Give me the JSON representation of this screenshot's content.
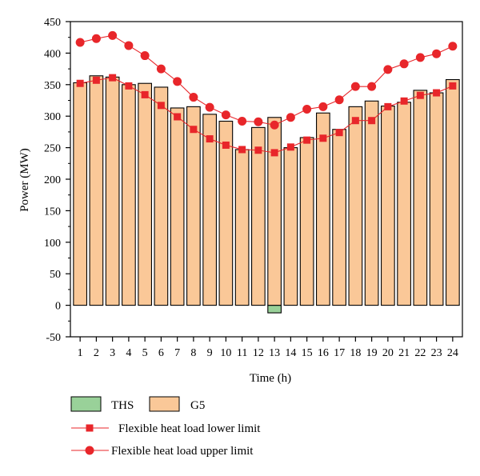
{
  "chart_data": {
    "type": "bar",
    "categories": [
      "1",
      "2",
      "3",
      "4",
      "5",
      "6",
      "7",
      "8",
      "9",
      "10",
      "11",
      "12",
      "13",
      "14",
      "15",
      "16",
      "17",
      "18",
      "19",
      "20",
      "21",
      "22",
      "23",
      "24"
    ],
    "series": [
      {
        "name": "THS",
        "kind": "bar",
        "color": "#99d199",
        "values": [
          0,
          0,
          0,
          0,
          0,
          0,
          0,
          0,
          0,
          0,
          0,
          0,
          -12,
          0,
          0,
          0,
          0,
          0,
          0,
          0,
          0,
          0,
          0,
          0
        ]
      },
      {
        "name": "G5",
        "kind": "bar",
        "color": "#fac898",
        "values": [
          353,
          364,
          362,
          350,
          352,
          346,
          313,
          315,
          303,
          292,
          247,
          282,
          298,
          250,
          266,
          305,
          279,
          315,
          324,
          316,
          322,
          341,
          337,
          358
        ]
      },
      {
        "name": "Flexible heat load lower limit",
        "kind": "line",
        "marker": "square",
        "color": "#e8262a",
        "values": [
          352,
          357,
          361,
          348,
          334,
          317,
          299,
          279,
          264,
          254,
          247,
          246,
          242,
          251,
          262,
          265,
          274,
          293,
          293,
          315,
          324,
          333,
          337,
          348
        ]
      },
      {
        "name": "Flexible heat load upper limit",
        "kind": "line",
        "marker": "circle",
        "color": "#e8262a",
        "values": [
          417,
          423,
          428,
          412,
          396,
          375,
          355,
          330,
          314,
          302,
          292,
          291,
          286,
          298,
          311,
          315,
          326,
          347,
          347,
          374,
          383,
          393,
          399,
          411
        ]
      }
    ],
    "xlabel": "Time (h)",
    "ylabel": "Power (MW)",
    "ylim": [
      -50,
      450
    ],
    "yticks": [
      -50,
      0,
      50,
      100,
      150,
      200,
      250,
      300,
      350,
      400,
      450
    ],
    "legend_position": "bottom",
    "grid": false
  }
}
